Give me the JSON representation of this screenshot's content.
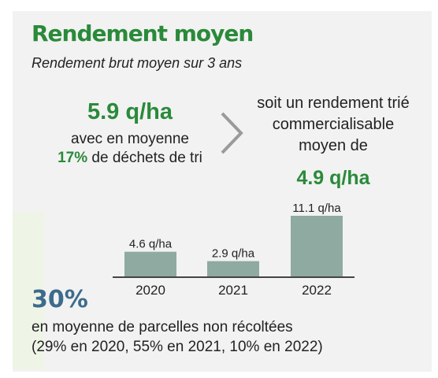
{
  "header": {
    "title": "Rendement moyen",
    "subtitle": "Rendement brut moyen sur 3 ans"
  },
  "gross": {
    "value": "5.9 q/ha",
    "waste_prefix": "avec en moyenne",
    "waste_pct": "17%",
    "waste_suffix": " de déchets de tri"
  },
  "sorted": {
    "line1": "soit un rendement trié",
    "line2": "commercialisable",
    "line3": "moyen de",
    "value": "4.9 q/ha"
  },
  "chart_data": {
    "type": "bar",
    "categories": [
      "2020",
      "2021",
      "2022"
    ],
    "values": [
      4.6,
      2.9,
      11.1
    ],
    "data_labels": [
      "4.6 q/ha",
      "2.9 q/ha",
      "11.1 q/ha"
    ],
    "unit": "q/ha",
    "bar_color": "#8faaa0",
    "title": "",
    "xlabel": "",
    "ylabel": "",
    "ylim": [
      0,
      11.1
    ],
    "grid": false
  },
  "unharvested": {
    "value": "30%",
    "line1": "en moyenne de parcelles non récoltées",
    "line2": "(29% en 2020, 55% en 2021, 10% en 2022)"
  },
  "colors": {
    "green": "#2a8a3a",
    "blue": "#3d6b8c",
    "chevron": "#9a9a9a",
    "background": "#f2f2f2"
  }
}
